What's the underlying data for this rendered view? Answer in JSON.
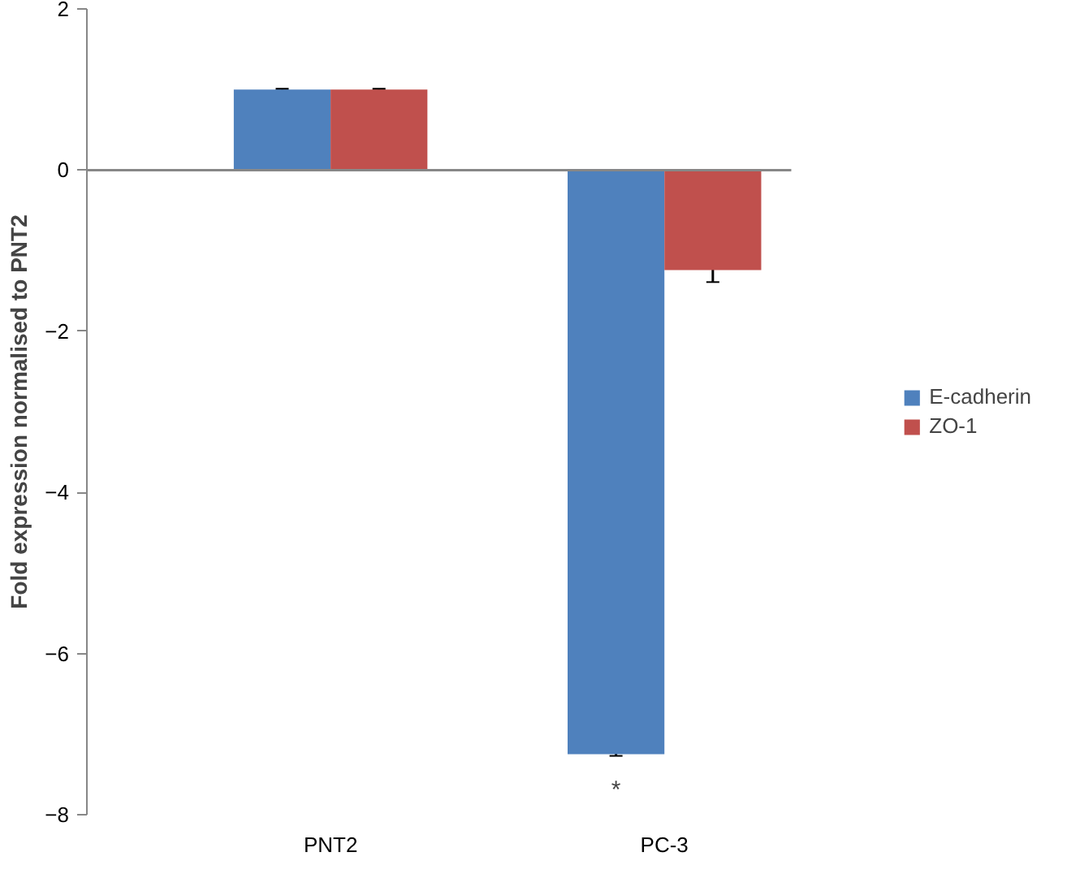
{
  "chart_data": {
    "type": "bar",
    "ylabel": "Fold expression normalised to PNT2",
    "categories": [
      "PNT2",
      "PC-3"
    ],
    "series": [
      {
        "name": "E-cadherin",
        "color": "#4f81bd",
        "values": [
          1,
          -7.25
        ],
        "errors": [
          0.01,
          0.02
        ]
      },
      {
        "name": "ZO-1",
        "color": "#c0504d",
        "values": [
          1,
          -1.24
        ],
        "errors": [
          0.01,
          0.15
        ]
      }
    ],
    "ylim": [
      -8,
      2
    ],
    "yticks": [
      -8,
      -6,
      -4,
      -2,
      0,
      2
    ],
    "grid": false,
    "legend": "right",
    "ref_lines": [
      {
        "axis": "y",
        "value": 0,
        "color": "#878787"
      }
    ],
    "annotations": [
      "*"
    ]
  }
}
